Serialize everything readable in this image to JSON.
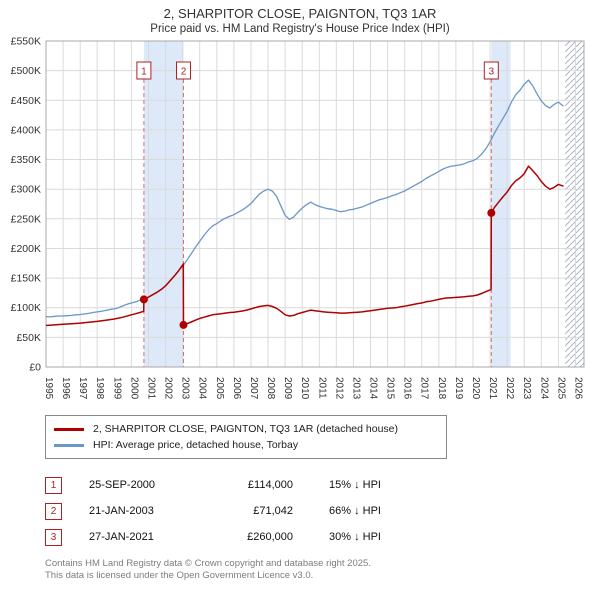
{
  "title": "2, SHARPITOR CLOSE, PAIGNTON, TQ3 1AR",
  "subtitle": "Price paid vs. HM Land Registry's House Price Index (HPI)",
  "legend": [
    {
      "label": "2, SHARPITOR CLOSE, PAIGNTON, TQ3 1AR (detached house)",
      "color": "#b00000"
    },
    {
      "label": "HPI: Average price, detached house, Torbay",
      "color": "#6a96c8"
    }
  ],
  "transactions": [
    {
      "num": "1",
      "date": "25-SEP-2000",
      "price": "£114,000",
      "hpi": "15% ↓ HPI"
    },
    {
      "num": "2",
      "date": "21-JAN-2003",
      "price": "£71,042",
      "hpi": "66% ↓ HPI"
    },
    {
      "num": "3",
      "date": "27-JAN-2021",
      "price": "£260,000",
      "hpi": "30% ↓ HPI"
    }
  ],
  "footer": {
    "line1": "Contains HM Land Registry data © Crown copyright and database right 2025.",
    "line2": "This data is licensed under the Open Government Licence v3.0."
  },
  "chart_data": {
    "type": "line",
    "title": "2, SHARPITOR CLOSE, PAIGNTON, TQ3 1AR",
    "subtitle": "Price paid vs. HM Land Registry's House Price Index (HPI)",
    "xlabel": "",
    "ylabel": "",
    "xlim": [
      1995,
      2026.5
    ],
    "ylim": [
      0,
      550000
    ],
    "grid": true,
    "legend_position": "below",
    "xticks": [
      1995,
      1996,
      1997,
      1998,
      1999,
      2000,
      2001,
      2002,
      2003,
      2004,
      2005,
      2006,
      2007,
      2008,
      2009,
      2010,
      2011,
      2012,
      2013,
      2014,
      2015,
      2016,
      2017,
      2018,
      2019,
      2020,
      2021,
      2022,
      2023,
      2024,
      2025,
      2026
    ],
    "yticks": [
      0,
      50000,
      100000,
      150000,
      200000,
      250000,
      300000,
      350000,
      400000,
      450000,
      500000,
      550000
    ],
    "ytick_labels": [
      "£0",
      "£50K",
      "£100K",
      "£150K",
      "£200K",
      "£250K",
      "£300K",
      "£350K",
      "£400K",
      "£450K",
      "£500K",
      "£550K"
    ],
    "band_color": "#dde9f8",
    "dashed_line_color": "#d87070",
    "bands": [
      [
        2000.73,
        2003.05
      ],
      [
        2021.07,
        2022.2
      ]
    ],
    "future": [
      2025.4,
      2026.5
    ],
    "sales": [
      {
        "label": "1",
        "x": 2000.73,
        "y": 114000,
        "date": "25-SEP-2000",
        "price": "£114,000",
        "vs_hpi": "15% ↓ HPI"
      },
      {
        "label": "2",
        "x": 2003.05,
        "y": 71042,
        "date": "21-JAN-2003",
        "price": "£71,042",
        "vs_hpi": "66% ↓ HPI"
      },
      {
        "label": "3",
        "x": 2021.07,
        "y": 260000,
        "date": "27-JAN-2021",
        "price": "£260,000",
        "vs_hpi": "30% ↓ HPI"
      }
    ],
    "series": [
      {
        "name": "HPI: Average price, detached house, Torbay",
        "color": "#6a96c8",
        "width": 1.3,
        "points": [
          [
            1995,
            85000
          ],
          [
            1995.25,
            84500
          ],
          [
            1995.5,
            85500
          ],
          [
            1995.75,
            86000
          ],
          [
            1996,
            86000
          ],
          [
            1996.25,
            86500
          ],
          [
            1996.5,
            87000
          ],
          [
            1996.75,
            88000
          ],
          [
            1997,
            88500
          ],
          [
            1997.25,
            89500
          ],
          [
            1997.5,
            90500
          ],
          [
            1997.75,
            92000
          ],
          [
            1998,
            93000
          ],
          [
            1998.25,
            94000
          ],
          [
            1998.5,
            95500
          ],
          [
            1998.75,
            97000
          ],
          [
            1999,
            98000
          ],
          [
            1999.25,
            100000
          ],
          [
            1999.5,
            103000
          ],
          [
            1999.75,
            106000
          ],
          [
            2000,
            108000
          ],
          [
            2000.25,
            110000
          ],
          [
            2000.5,
            112500
          ],
          [
            2000.75,
            115000
          ],
          [
            2001,
            118000
          ],
          [
            2001.25,
            122000
          ],
          [
            2001.5,
            126000
          ],
          [
            2001.75,
            131000
          ],
          [
            2002,
            137000
          ],
          [
            2002.25,
            145000
          ],
          [
            2002.5,
            153000
          ],
          [
            2002.75,
            162000
          ],
          [
            2003,
            170000
          ],
          [
            2003.25,
            180000
          ],
          [
            2003.5,
            191000
          ],
          [
            2003.75,
            202000
          ],
          [
            2004,
            212000
          ],
          [
            2004.25,
            222000
          ],
          [
            2004.5,
            231000
          ],
          [
            2004.75,
            238000
          ],
          [
            2005,
            242000
          ],
          [
            2005.25,
            247000
          ],
          [
            2005.5,
            251000
          ],
          [
            2005.75,
            254000
          ],
          [
            2006,
            257000
          ],
          [
            2006.25,
            261000
          ],
          [
            2006.5,
            265000
          ],
          [
            2006.75,
            270000
          ],
          [
            2007,
            276000
          ],
          [
            2007.25,
            284000
          ],
          [
            2007.5,
            292000
          ],
          [
            2007.75,
            297000
          ],
          [
            2008,
            300000
          ],
          [
            2008.25,
            297000
          ],
          [
            2008.5,
            288000
          ],
          [
            2008.75,
            272000
          ],
          [
            2009,
            256000
          ],
          [
            2009.25,
            249000
          ],
          [
            2009.5,
            253000
          ],
          [
            2009.75,
            261000
          ],
          [
            2010,
            268000
          ],
          [
            2010.25,
            274000
          ],
          [
            2010.5,
            278000
          ],
          [
            2010.75,
            274000
          ],
          [
            2011,
            271000
          ],
          [
            2011.25,
            269000
          ],
          [
            2011.5,
            267000
          ],
          [
            2011.75,
            266000
          ],
          [
            2012,
            264000
          ],
          [
            2012.25,
            262000
          ],
          [
            2012.5,
            263000
          ],
          [
            2012.75,
            265000
          ],
          [
            2013,
            266000
          ],
          [
            2013.25,
            268000
          ],
          [
            2013.5,
            270000
          ],
          [
            2013.75,
            273000
          ],
          [
            2014,
            276000
          ],
          [
            2014.25,
            279000
          ],
          [
            2014.5,
            282000
          ],
          [
            2014.75,
            284000
          ],
          [
            2015,
            286000
          ],
          [
            2015.25,
            289000
          ],
          [
            2015.5,
            291000
          ],
          [
            2015.75,
            294000
          ],
          [
            2016,
            297000
          ],
          [
            2016.25,
            301000
          ],
          [
            2016.5,
            305000
          ],
          [
            2016.75,
            309000
          ],
          [
            2017,
            313000
          ],
          [
            2017.25,
            318000
          ],
          [
            2017.5,
            322000
          ],
          [
            2017.75,
            326000
          ],
          [
            2018,
            330000
          ],
          [
            2018.25,
            334000
          ],
          [
            2018.5,
            337000
          ],
          [
            2018.75,
            339000
          ],
          [
            2019,
            340000
          ],
          [
            2019.25,
            341000
          ],
          [
            2019.5,
            343000
          ],
          [
            2019.75,
            346000
          ],
          [
            2020,
            348000
          ],
          [
            2020.25,
            352000
          ],
          [
            2020.5,
            359000
          ],
          [
            2020.75,
            368000
          ],
          [
            2021,
            380000
          ],
          [
            2021.25,
            394000
          ],
          [
            2021.5,
            407000
          ],
          [
            2021.75,
            419000
          ],
          [
            2022,
            431000
          ],
          [
            2022.25,
            447000
          ],
          [
            2022.5,
            459000
          ],
          [
            2022.75,
            467000
          ],
          [
            2023,
            477000
          ],
          [
            2023.25,
            484000
          ],
          [
            2023.5,
            474000
          ],
          [
            2023.75,
            461000
          ],
          [
            2024,
            449000
          ],
          [
            2024.25,
            441000
          ],
          [
            2024.5,
            437000
          ],
          [
            2024.75,
            443000
          ],
          [
            2025,
            447000
          ],
          [
            2025.3,
            440000
          ]
        ]
      },
      {
        "name": "2, SHARPITOR CLOSE, PAIGNTON, TQ3 1AR (detached house)",
        "color": "#b00000",
        "width": 1.5,
        "points": [
          [
            1995,
            70000
          ],
          [
            1995.5,
            71000
          ],
          [
            1996,
            72000
          ],
          [
            1996.5,
            73000
          ],
          [
            1997,
            74000
          ],
          [
            1997.5,
            75500
          ],
          [
            1998,
            77000
          ],
          [
            1998.5,
            79000
          ],
          [
            1999,
            81000
          ],
          [
            1999.5,
            84000
          ],
          [
            2000,
            88000
          ],
          [
            2000.25,
            90000
          ],
          [
            2000.5,
            92000
          ],
          [
            2000.72,
            94000
          ],
          [
            2000.73,
            114000
          ],
          [
            2001,
            118000
          ],
          [
            2001.25,
            122000
          ],
          [
            2001.5,
            126000
          ],
          [
            2001.75,
            131000
          ],
          [
            2002,
            137000
          ],
          [
            2002.25,
            145000
          ],
          [
            2002.5,
            153000
          ],
          [
            2002.75,
            162000
          ],
          [
            2003,
            172000
          ],
          [
            2003.04,
            174000
          ],
          [
            2003.05,
            71042
          ],
          [
            2003.25,
            73000
          ],
          [
            2003.5,
            76000
          ],
          [
            2003.75,
            79000
          ],
          [
            2004,
            82000
          ],
          [
            2004.25,
            84000
          ],
          [
            2004.5,
            86000
          ],
          [
            2004.75,
            88000
          ],
          [
            2005,
            89000
          ],
          [
            2005.25,
            90000
          ],
          [
            2005.5,
            91000
          ],
          [
            2005.75,
            92000
          ],
          [
            2006,
            92500
          ],
          [
            2006.25,
            93500
          ],
          [
            2006.5,
            94500
          ],
          [
            2006.75,
            96000
          ],
          [
            2007,
            98000
          ],
          [
            2007.25,
            100000
          ],
          [
            2007.5,
            102000
          ],
          [
            2007.75,
            103000
          ],
          [
            2008,
            104000
          ],
          [
            2008.25,
            102000
          ],
          [
            2008.5,
            99000
          ],
          [
            2008.75,
            94000
          ],
          [
            2009,
            88000
          ],
          [
            2009.25,
            86000
          ],
          [
            2009.5,
            87000
          ],
          [
            2009.75,
            90000
          ],
          [
            2010,
            92000
          ],
          [
            2010.25,
            94000
          ],
          [
            2010.5,
            96000
          ],
          [
            2010.75,
            95000
          ],
          [
            2011,
            94000
          ],
          [
            2011.25,
            93000
          ],
          [
            2011.5,
            92500
          ],
          [
            2011.75,
            92000
          ],
          [
            2012,
            91500
          ],
          [
            2012.25,
            91000
          ],
          [
            2012.5,
            91000
          ],
          [
            2012.75,
            91500
          ],
          [
            2013,
            92000
          ],
          [
            2013.25,
            92500
          ],
          [
            2013.5,
            93000
          ],
          [
            2013.75,
            94000
          ],
          [
            2014,
            95000
          ],
          [
            2014.25,
            96000
          ],
          [
            2014.5,
            97000
          ],
          [
            2014.75,
            98000
          ],
          [
            2015,
            99000
          ],
          [
            2015.25,
            99500
          ],
          [
            2015.5,
            100000
          ],
          [
            2015.75,
            101500
          ],
          [
            2016,
            102500
          ],
          [
            2016.25,
            104000
          ],
          [
            2016.5,
            105500
          ],
          [
            2016.75,
            107000
          ],
          [
            2017,
            108000
          ],
          [
            2017.25,
            110000
          ],
          [
            2017.5,
            111000
          ],
          [
            2017.75,
            112500
          ],
          [
            2018,
            114000
          ],
          [
            2018.25,
            115500
          ],
          [
            2018.5,
            116500
          ],
          [
            2018.75,
            117000
          ],
          [
            2019,
            117500
          ],
          [
            2019.25,
            118000
          ],
          [
            2019.5,
            118500
          ],
          [
            2019.75,
            119500
          ],
          [
            2020,
            120000
          ],
          [
            2020.25,
            121500
          ],
          [
            2020.5,
            124000
          ],
          [
            2020.75,
            127000
          ],
          [
            2021,
            130000
          ],
          [
            2021.06,
            131000
          ],
          [
            2021.07,
            260000
          ],
          [
            2021.25,
            269000
          ],
          [
            2021.5,
            278000
          ],
          [
            2021.75,
            287000
          ],
          [
            2022,
            295000
          ],
          [
            2022.25,
            306000
          ],
          [
            2022.5,
            314000
          ],
          [
            2022.75,
            319000
          ],
          [
            2023,
            326000
          ],
          [
            2023.25,
            339000
          ],
          [
            2023.5,
            331000
          ],
          [
            2023.75,
            323000
          ],
          [
            2024,
            313000
          ],
          [
            2024.25,
            305000
          ],
          [
            2024.5,
            300000
          ],
          [
            2024.75,
            303000
          ],
          [
            2025,
            308000
          ],
          [
            2025.3,
            305000
          ]
        ]
      }
    ]
  }
}
